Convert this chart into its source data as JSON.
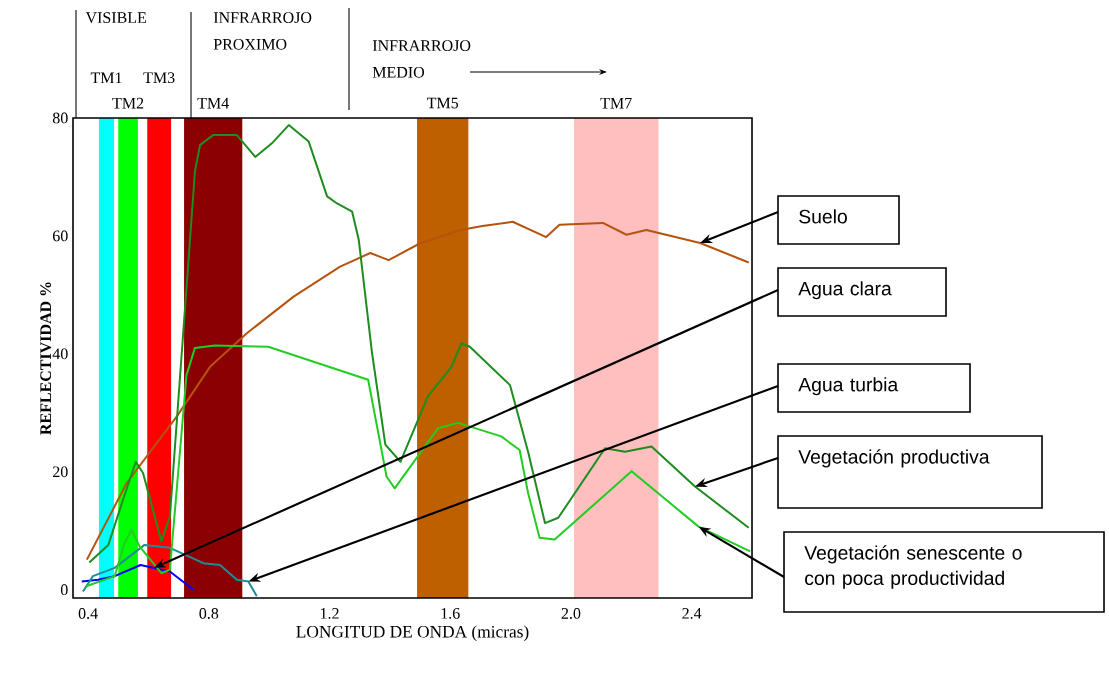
{
  "chart_data": {
    "type": "line",
    "xlabel": "LONGITUD DE ONDA (micras)",
    "ylabel": "REFLECTIVIDAD %",
    "xlim": [
      0.35,
      2.6
    ],
    "ylim": [
      -1.4,
      80
    ],
    "xticks": [
      0.4,
      0.8,
      1.2,
      1.6,
      {
        "value": 2.0,
        "label": "2.0"
      },
      2.4
    ],
    "yticks": [
      0,
      20,
      40,
      60,
      80
    ],
    "grid": false,
    "bands": [
      {
        "axis": "x",
        "from": 0.436,
        "to": 0.486,
        "label": "TM1",
        "color": "#00ffff"
      },
      {
        "axis": "x",
        "from": 0.5,
        "to": 0.565,
        "label": "TM2",
        "color": "#00ff00"
      },
      {
        "axis": "x",
        "from": 0.596,
        "to": 0.675,
        "label": "TM3",
        "color": "#ff0000"
      },
      {
        "axis": "x",
        "from": 0.718,
        "to": 0.911,
        "label": "TM4",
        "color": "#8b0000"
      },
      {
        "axis": "x",
        "from": 1.49,
        "to": 1.66,
        "label": "TM5",
        "color": "#bf6000"
      },
      {
        "axis": "x",
        "from": 2.01,
        "to": 2.29,
        "label": "TM7",
        "color": "#ffbfbf"
      }
    ],
    "annotations": [
      "VISIBLE",
      "INFRARROJO PROXIMO",
      "INFRARROJO MEDIO"
    ],
    "series": [
      {
        "name": "Suelo",
        "color": "#b5530f",
        "x": [
          0.396,
          0.528,
          0.694,
          0.804,
          0.926,
          1.081,
          1.235,
          1.335,
          1.396,
          1.502,
          1.536,
          1.634,
          1.707,
          1.807,
          1.918,
          1.962,
          2.106,
          2.184,
          2.25,
          2.428,
          2.589
        ],
        "values": [
          5.1,
          18.1,
          29.4,
          37.8,
          43.5,
          49.7,
          54.8,
          57.1,
          55.9,
          58.8,
          59.3,
          61.0,
          61.7,
          62.4,
          59.8,
          61.9,
          62.2,
          60.2,
          61.0,
          58.8,
          55.5
        ]
      },
      {
        "name": "Agua clara",
        "color": "#0000ff",
        "x": [
          0.379,
          0.433,
          0.488,
          0.574,
          0.618,
          0.671,
          0.749
        ],
        "values": [
          1.4,
          1.7,
          2.3,
          4.2,
          3.7,
          3.1,
          0
        ]
      },
      {
        "name": "Agua turbia",
        "color": "#1a8f9a",
        "x": [
          0.383,
          0.416,
          0.488,
          0.587,
          0.671,
          0.782,
          0.837,
          0.893,
          0.931,
          0.959
        ],
        "values": [
          -0.3,
          2.3,
          3.7,
          7.6,
          7.1,
          4.5,
          4.2,
          1.7,
          1.4,
          -1.1
        ]
      },
      {
        "name": "Vegetación productiva",
        "color": "#1e8c1e",
        "x": [
          0.404,
          0.467,
          0.516,
          0.558,
          0.582,
          0.643,
          0.671,
          0.754,
          0.771,
          0.814,
          0.893,
          0.954,
          1.009,
          1.065,
          1.131,
          1.192,
          1.225,
          1.275,
          1.297,
          1.341,
          1.385,
          1.435,
          1.526,
          1.604,
          1.637,
          1.665,
          1.798,
          1.859,
          1.914,
          1.958,
          2.113,
          2.179,
          2.267,
          2.411,
          2.589
        ],
        "values": [
          4.6,
          7.6,
          15.3,
          21.7,
          19.8,
          8.2,
          12.4,
          70.9,
          75.4,
          77.1,
          77.1,
          73.4,
          75.7,
          78.8,
          76.0,
          66.7,
          65.5,
          64.1,
          59.3,
          40.1,
          24.6,
          21.7,
          32.8,
          37.8,
          41.8,
          41.2,
          34.7,
          23.2,
          11.3,
          12.2,
          24.0,
          23.4,
          24.3,
          17.5,
          10.5
        ]
      },
      {
        "name": "Vegetación senescente o con poca productividad",
        "color": "#22cc22",
        "x": [
          0.394,
          0.488,
          0.521,
          0.544,
          0.571,
          0.643,
          0.671,
          0.726,
          0.754,
          0.82,
          0.997,
          1.328,
          1.389,
          1.416,
          1.56,
          1.626,
          1.769,
          1.83,
          1.858,
          1.896,
          1.946,
          2.201,
          2.423,
          2.594
        ],
        "values": [
          0.6,
          2.3,
          7.9,
          10.2,
          7.3,
          2.8,
          3.4,
          36.4,
          41.0,
          41.4,
          41.2,
          35.6,
          19.2,
          17.2,
          27.4,
          28.3,
          26.0,
          23.7,
          16.4,
          8.8,
          8.5,
          20.1,
          10.7,
          6.5
        ]
      }
    ]
  }
}
